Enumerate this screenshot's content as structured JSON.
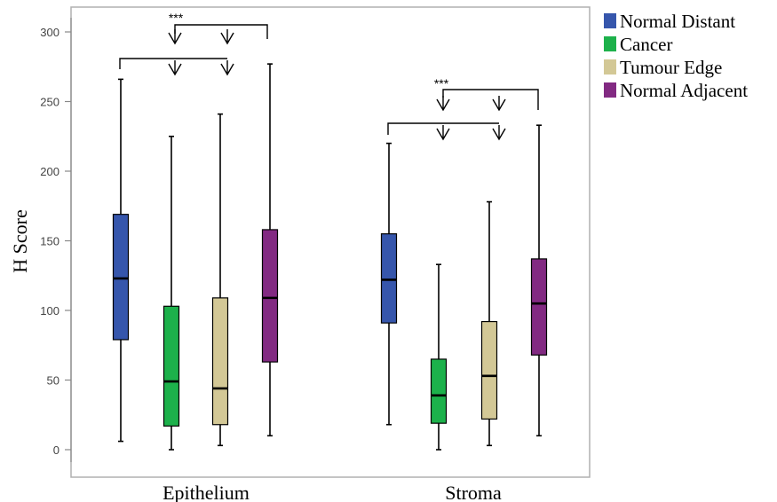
{
  "chart_data": {
    "type": "boxplot",
    "ylabel": "H Score",
    "ylim": [
      -15,
      320
    ],
    "yticks": [
      0,
      50,
      100,
      150,
      200,
      250,
      300
    ],
    "categories": [
      "Epithelium",
      "Stroma"
    ],
    "legend": {
      "placement": "right",
      "entries": [
        {
          "name": "Normal Distant",
          "color": "#3656ac"
        },
        {
          "name": "Cancer",
          "color": "#1db14b"
        },
        {
          "name": "Tumour Edge",
          "color": "#d3c896"
        },
        {
          "name": "Normal Adjacent",
          "color": "#822a82"
        }
      ]
    },
    "series": [
      {
        "name": "Normal Distant",
        "color": "#3656ac",
        "boxes": [
          {
            "min": 6,
            "q1": 79,
            "median": 123,
            "q3": 169,
            "max": 266
          },
          {
            "min": 18,
            "q1": 91,
            "median": 122,
            "q3": 155,
            "max": 220
          }
        ]
      },
      {
        "name": "Cancer",
        "color": "#1db14b",
        "boxes": [
          {
            "min": 0,
            "q1": 17,
            "median": 49,
            "q3": 103,
            "max": 225
          },
          {
            "min": 0,
            "q1": 19,
            "median": 39,
            "q3": 65,
            "max": 133
          }
        ]
      },
      {
        "name": "Tumour Edge",
        "color": "#d3c896",
        "boxes": [
          {
            "min": 3,
            "q1": 18,
            "median": 44,
            "q3": 109,
            "max": 241
          },
          {
            "min": 3,
            "q1": 22,
            "median": 53,
            "q3": 92,
            "max": 178
          }
        ]
      },
      {
        "name": "Normal Adjacent",
        "color": "#822a82",
        "boxes": [
          {
            "min": 10,
            "q1": 63,
            "median": 109,
            "q3": 158,
            "max": 277
          },
          {
            "min": 10,
            "q1": 68,
            "median": 105,
            "q3": 137,
            "max": 233
          }
        ]
      }
    ],
    "annotations": [
      {
        "group": "Epithelium",
        "label": "***"
      },
      {
        "group": "Stroma",
        "label": "***"
      }
    ]
  }
}
